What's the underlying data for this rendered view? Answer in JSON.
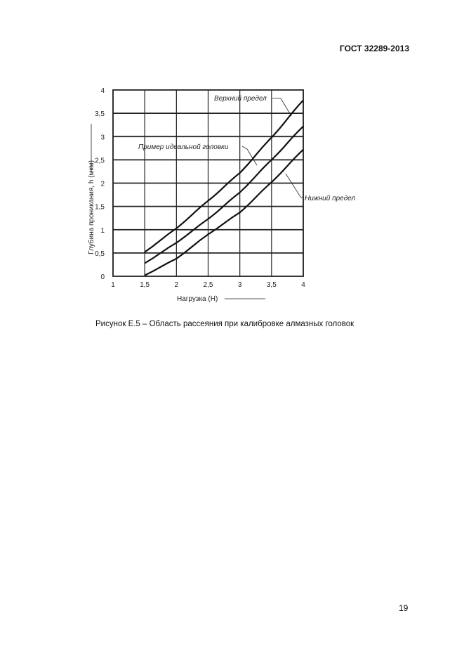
{
  "header": {
    "doc_code": "ГОСТ 32289-2013"
  },
  "caption": "Рисунок Е.5 – Область рассеяния при калибровке алмазных головок",
  "page_number": "19",
  "chart_data": {
    "type": "line",
    "title": "",
    "xlabel": "Нагрузка (Н)",
    "ylabel": "Глубина проникания, h (мкм)",
    "xlim": [
      1,
      4
    ],
    "ylim": [
      0,
      4
    ],
    "xticks": [
      "1",
      "1,5",
      "2",
      "2,5",
      "3",
      "3,5",
      "4"
    ],
    "yticks": [
      "0",
      "0,5",
      "1",
      "1,5",
      "2",
      "2,5",
      "3",
      "3,5",
      "4"
    ],
    "grid": true,
    "x": [
      1.5,
      2,
      2.5,
      3,
      3.5,
      4
    ],
    "series": [
      {
        "name": "Верхний предел",
        "values": [
          0.52,
          1.03,
          1.62,
          2.22,
          2.98,
          3.78
        ]
      },
      {
        "name": "Пример идеальной головки",
        "values": [
          0.28,
          0.72,
          1.23,
          1.8,
          2.5,
          3.22
        ]
      },
      {
        "name": "Нижний предел",
        "values": [
          0.02,
          0.38,
          0.9,
          1.37,
          2.02,
          2.72
        ]
      }
    ],
    "line_color": "#111111"
  }
}
